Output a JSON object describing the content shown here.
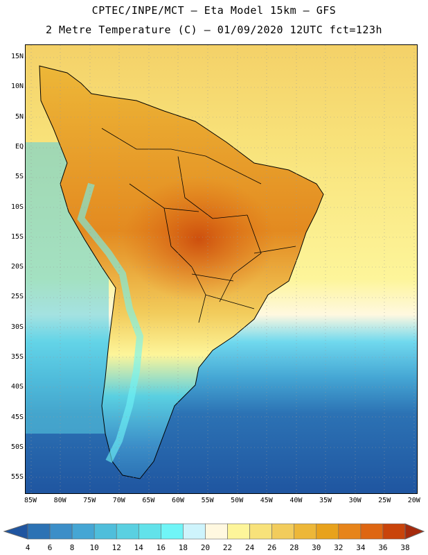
{
  "title": {
    "line1": "CPTEC/INPE/MCT –  Eta Model 15km – GFS",
    "line2": "2 Metre Temperature (C) – 01/09/2020 12UTC fct=123h"
  },
  "map": {
    "lat_labels": [
      "15N",
      "10N",
      "5N",
      "EQ",
      "5S",
      "10S",
      "15S",
      "20S",
      "25S",
      "30S",
      "35S",
      "40S",
      "45S",
      "50S",
      "55S"
    ],
    "lon_labels": [
      "85W",
      "80W",
      "75W",
      "70W",
      "65W",
      "60W",
      "55W",
      "50W",
      "45W",
      "40W",
      "35W",
      "30W",
      "25W",
      "20W"
    ]
  },
  "colorbar": {
    "levels": [
      4,
      6,
      8,
      10,
      12,
      14,
      16,
      18,
      20,
      22,
      24,
      26,
      28,
      30,
      32,
      34,
      36,
      38
    ],
    "colors": [
      "#1f55a0",
      "#2c72b4",
      "#3c8ec8",
      "#45a6d4",
      "#4fbedb",
      "#5ad0e1",
      "#62e2ea",
      "#70f5f7",
      "#cef4fc",
      "#fff8e0",
      "#fdf59a",
      "#f8e27a",
      "#f2cc5c",
      "#edb738",
      "#e8a21c",
      "#e7841a",
      "#de6612",
      "#c9440a",
      "#a52a0c"
    ]
  }
}
